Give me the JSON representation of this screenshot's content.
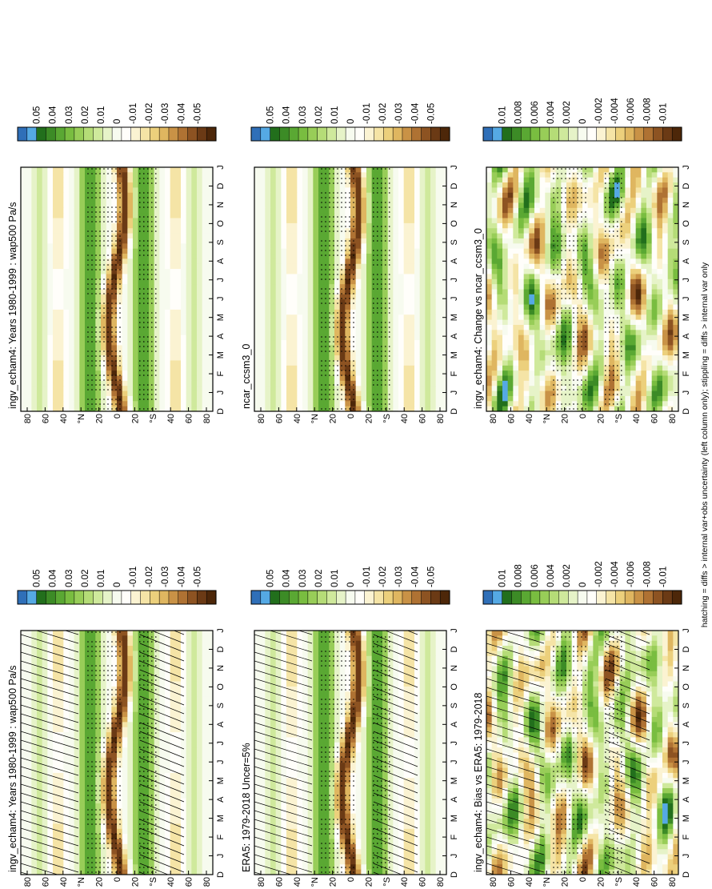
{
  "footnote": "hatching = diffs > internal var+obs uncertainty (left column only); stippling = diffs > internal var only",
  "months": [
    "D",
    "J",
    "F",
    "M",
    "A",
    "M",
    "J",
    "J",
    "A",
    "S",
    "O",
    "N",
    "D",
    "J"
  ],
  "lat_ticks": [
    "80",
    "60",
    "40",
    "°N",
    "20",
    "0",
    "20",
    "°S",
    "40",
    "60",
    "80"
  ],
  "panels": [
    {
      "id": "p1",
      "title": "ingv_echam4: Years 1980-1999 : wap500 Pa/s",
      "scale": "main",
      "row": 0,
      "col": 0,
      "hatch": true,
      "stipple": true
    },
    {
      "id": "p2",
      "title": "ERA5: 1979-2018 Uncer=5%",
      "scale": "main",
      "row": 1,
      "col": 0,
      "hatch": true,
      "stipple": true
    },
    {
      "id": "p3",
      "title": "ingv_echam4: Bias vs ERA5: 1979-2018",
      "scale": "diff",
      "row": 2,
      "col": 0,
      "hatch": true,
      "stipple": true
    },
    {
      "id": "p4",
      "title": "ingv_echam4: Years 1980-1999 : wap500 Pa/s",
      "scale": "main",
      "row": 0,
      "col": 1,
      "hatch": false,
      "stipple": true
    },
    {
      "id": "p5",
      "title": "ncar_ccsm3_0",
      "scale": "main",
      "row": 1,
      "col": 1,
      "hatch": false,
      "stipple": true
    },
    {
      "id": "p6",
      "title": "ingv_echam4: Change vs ncar_ccsm3_0",
      "scale": "diff",
      "row": 2,
      "col": 1,
      "hatch": false,
      "stipple": true
    }
  ],
  "colorbars": {
    "main": {
      "labels": [
        "0.05",
        "0.04",
        "0.03",
        "0.02",
        "0.01",
        "0",
        "-0.01",
        "-0.02",
        "-0.03",
        "-0.04",
        "-0.05"
      ]
    },
    "diff": {
      "labels": [
        "0.01",
        "0.008",
        "0.006",
        "0.004",
        "0.002",
        "0",
        "-0.002",
        "-0.004",
        "-0.006",
        "-0.008",
        "-0.01"
      ]
    }
  },
  "palette": [
    "#2f6fb8",
    "#55a9e4",
    "#226f1c",
    "#3c8b26",
    "#5aa833",
    "#79bd40",
    "#98cd58",
    "#b5dc77",
    "#cfe99c",
    "#e6f3c8",
    "#f7fbef",
    "#fffefa",
    "#fbf3d2",
    "#f5e4a6",
    "#ecd07c",
    "#dfb660",
    "#c99246",
    "#af7233",
    "#8d5322",
    "#6b3a15",
    "#4d2709"
  ],
  "chart_data": [
    {
      "type": "heatmap",
      "title": "ingv_echam4: Years 1980-1999 : wap500 Pa/s",
      "x": [
        "D",
        "J",
        "F",
        "M",
        "A",
        "M",
        "J",
        "J",
        "A",
        "S",
        "O",
        "N",
        "D",
        "J"
      ],
      "y": [
        "80",
        "60",
        "40",
        "°N",
        "20",
        "0",
        "20",
        "°S",
        "40",
        "60",
        "80"
      ],
      "colorbar": [
        0.05,
        0.04,
        0.03,
        0.02,
        0.01,
        0,
        -0.01,
        -0.02,
        -0.03,
        -0.04,
        -0.05
      ]
    },
    {
      "type": "heatmap",
      "title": "ERA5: 1979-2018 Uncer=5%",
      "x": [
        "D",
        "J",
        "F",
        "M",
        "A",
        "M",
        "J",
        "J",
        "A",
        "S",
        "O",
        "N",
        "D",
        "J"
      ],
      "y": [
        "80",
        "60",
        "40",
        "°N",
        "20",
        "0",
        "20",
        "°S",
        "40",
        "60",
        "80"
      ],
      "colorbar": [
        0.05,
        0.04,
        0.03,
        0.02,
        0.01,
        0,
        -0.01,
        -0.02,
        -0.03,
        -0.04,
        -0.05
      ]
    },
    {
      "type": "heatmap",
      "title": "ingv_echam4: Bias vs ERA5: 1979-2018",
      "x": [
        "D",
        "J",
        "F",
        "M",
        "A",
        "M",
        "J",
        "J",
        "A",
        "S",
        "O",
        "N",
        "D",
        "J"
      ],
      "y": [
        "80",
        "60",
        "40",
        "°N",
        "20",
        "0",
        "20",
        "°S",
        "40",
        "60",
        "80"
      ],
      "colorbar": [
        0.01,
        0.008,
        0.006,
        0.004,
        0.002,
        0,
        -0.002,
        -0.004,
        -0.006,
        -0.008,
        -0.01
      ]
    },
    {
      "type": "heatmap",
      "title": "ingv_echam4: Years 1980-1999 : wap500 Pa/s",
      "x": [
        "D",
        "J",
        "F",
        "M",
        "A",
        "M",
        "J",
        "J",
        "A",
        "S",
        "O",
        "N",
        "D",
        "J"
      ],
      "y": [
        "80",
        "60",
        "40",
        "°N",
        "20",
        "0",
        "20",
        "°S",
        "40",
        "60",
        "80"
      ],
      "colorbar": [
        0.05,
        0.04,
        0.03,
        0.02,
        0.01,
        0,
        -0.01,
        -0.02,
        -0.03,
        -0.04,
        -0.05
      ]
    },
    {
      "type": "heatmap",
      "title": "ncar_ccsm3_0",
      "x": [
        "D",
        "J",
        "F",
        "M",
        "A",
        "M",
        "J",
        "J",
        "A",
        "S",
        "O",
        "N",
        "D",
        "J"
      ],
      "y": [
        "80",
        "60",
        "40",
        "°N",
        "20",
        "0",
        "20",
        "°S",
        "40",
        "60",
        "80"
      ],
      "colorbar": [
        0.05,
        0.04,
        0.03,
        0.02,
        0.01,
        0,
        -0.01,
        -0.02,
        -0.03,
        -0.04,
        -0.05
      ]
    },
    {
      "type": "heatmap",
      "title": "ingv_echam4: Change vs ncar_ccsm3_0",
      "x": [
        "D",
        "J",
        "F",
        "M",
        "A",
        "M",
        "J",
        "J",
        "A",
        "S",
        "O",
        "N",
        "D",
        "J"
      ],
      "y": [
        "80",
        "60",
        "40",
        "°N",
        "20",
        "0",
        "20",
        "°S",
        "40",
        "60",
        "80"
      ],
      "colorbar": [
        0.01,
        0.008,
        0.006,
        0.004,
        0.002,
        0,
        -0.002,
        -0.004,
        -0.006,
        -0.008,
        -0.01
      ]
    }
  ]
}
